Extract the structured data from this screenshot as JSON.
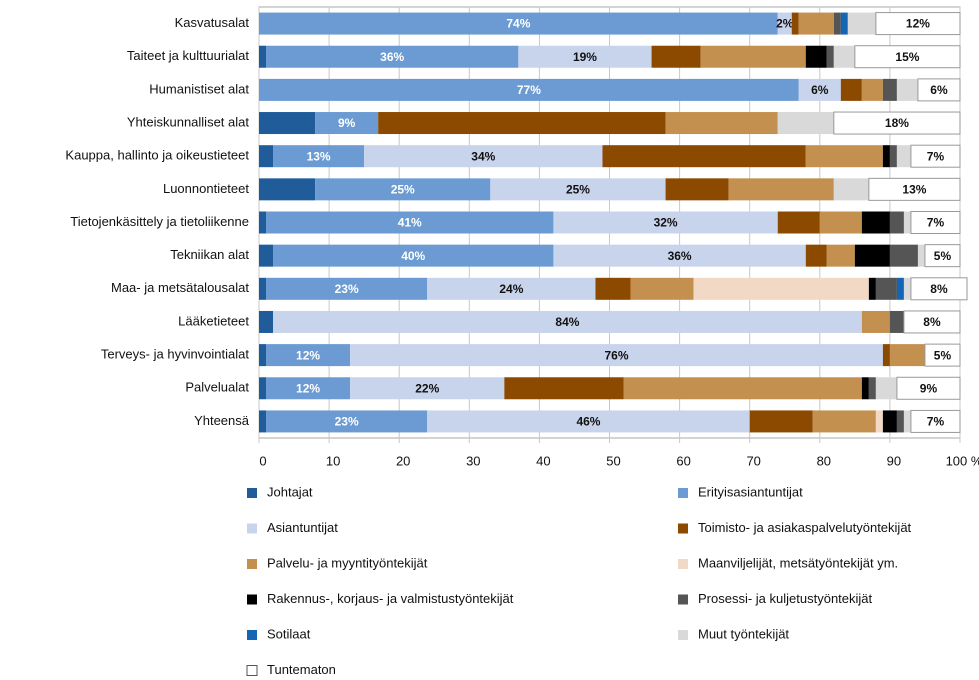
{
  "chart_data": {
    "type": "stacked_barh",
    "categories": [
      "Kasvatusalat",
      "Taiteet ja kulttuurialat",
      "Humanistiset alat",
      "Yhteiskunnalliset alat",
      "Kauppa, hallinto ja oikeustieteet",
      "Luonnontieteet",
      "Tietojenkäsittely ja tietoliikenne",
      "Tekniikan alat",
      "Maa- ja metsätalousalat",
      "Lääketieteet",
      "Terveys- ja hyvinvointialat",
      "Palvelualat",
      "Yhteensä"
    ],
    "series": [
      {
        "name": "Johtajat",
        "color": "#1f5c99",
        "values": [
          0,
          1,
          0,
          8,
          2,
          8,
          1,
          2,
          1,
          2,
          1,
          1,
          1
        ]
      },
      {
        "name": "Erityisasiantuntijat",
        "color": "#6b9bd2",
        "values": [
          74,
          36,
          77,
          9,
          13,
          25,
          41,
          40,
          23,
          0,
          12,
          12,
          23
        ],
        "value_labels": [
          "74%",
          "36%",
          "77%",
          "9%",
          "13%",
          "25%",
          "41%",
          "40%",
          "23%",
          null,
          "12%",
          "12%",
          "23%"
        ]
      },
      {
        "name": "Asiantuntijat",
        "color": "#c8d4ec",
        "values": [
          2,
          19,
          6,
          0,
          34,
          25,
          32,
          36,
          24,
          84,
          76,
          22,
          46
        ],
        "value_labels": [
          "2%",
          "19%",
          "6%",
          null,
          "34%",
          "25%",
          "32%",
          "36%",
          "24%",
          "84%",
          "76%",
          "22%",
          "46%"
        ]
      },
      {
        "name": "Toimisto- ja asiakaspalvelutyöntekijät",
        "color": "#8c4a00",
        "values": [
          1,
          7,
          3,
          41,
          29,
          9,
          6,
          3,
          5,
          0,
          1,
          17,
          9
        ]
      },
      {
        "name": "Palvelu- ja myyntityöntekijät",
        "color": "#c4904f",
        "values": [
          5,
          15,
          3,
          16,
          11,
          15,
          6,
          4,
          9,
          4,
          5,
          34,
          9
        ]
      },
      {
        "name": "Maanviljelijät, metsätyöntekijät ym.",
        "color": "#f1d9c5",
        "values": [
          0,
          0,
          0,
          0,
          0,
          0,
          0,
          0,
          25,
          0,
          0,
          0,
          1
        ]
      },
      {
        "name": "Rakennus-, korjaus- ja valmistustyöntekijät",
        "color": "#000000",
        "values": [
          0,
          3,
          0,
          0,
          1,
          0,
          4,
          5,
          1,
          0,
          0,
          1,
          2
        ]
      },
      {
        "name": "Prosessi- ja kuljetustyöntekijät",
        "color": "#555555",
        "values": [
          1,
          1,
          2,
          0,
          1,
          0,
          2,
          4,
          3,
          2,
          0,
          1,
          1
        ]
      },
      {
        "name": "Sotilaat",
        "color": "#1565b5",
        "values": [
          1,
          0,
          0,
          0,
          0,
          0,
          0,
          0,
          1,
          0,
          0,
          0,
          0
        ]
      },
      {
        "name": "Muut työntekijät",
        "color": "#d9d9d9",
        "values": [
          4,
          3,
          3,
          8,
          2,
          5,
          1,
          1,
          1,
          0,
          0,
          3,
          1
        ]
      },
      {
        "name": "Tuntematon",
        "color": "#ffffff",
        "values": [
          12,
          15,
          6,
          18,
          7,
          13,
          7,
          5,
          8,
          8,
          5,
          9,
          7
        ],
        "value_labels": [
          "12%",
          "15%",
          "6%",
          "18%",
          "7%",
          "13%",
          "7%",
          "5%",
          "8%",
          "8%",
          "5%",
          "9%",
          "7%"
        ]
      }
    ],
    "xlim": [
      0,
      100
    ],
    "xticks": [
      0,
      10,
      20,
      30,
      40,
      50,
      60,
      70,
      80,
      90,
      {
        "value": 100,
        "label": "100 %"
      }
    ],
    "grid": true
  }
}
